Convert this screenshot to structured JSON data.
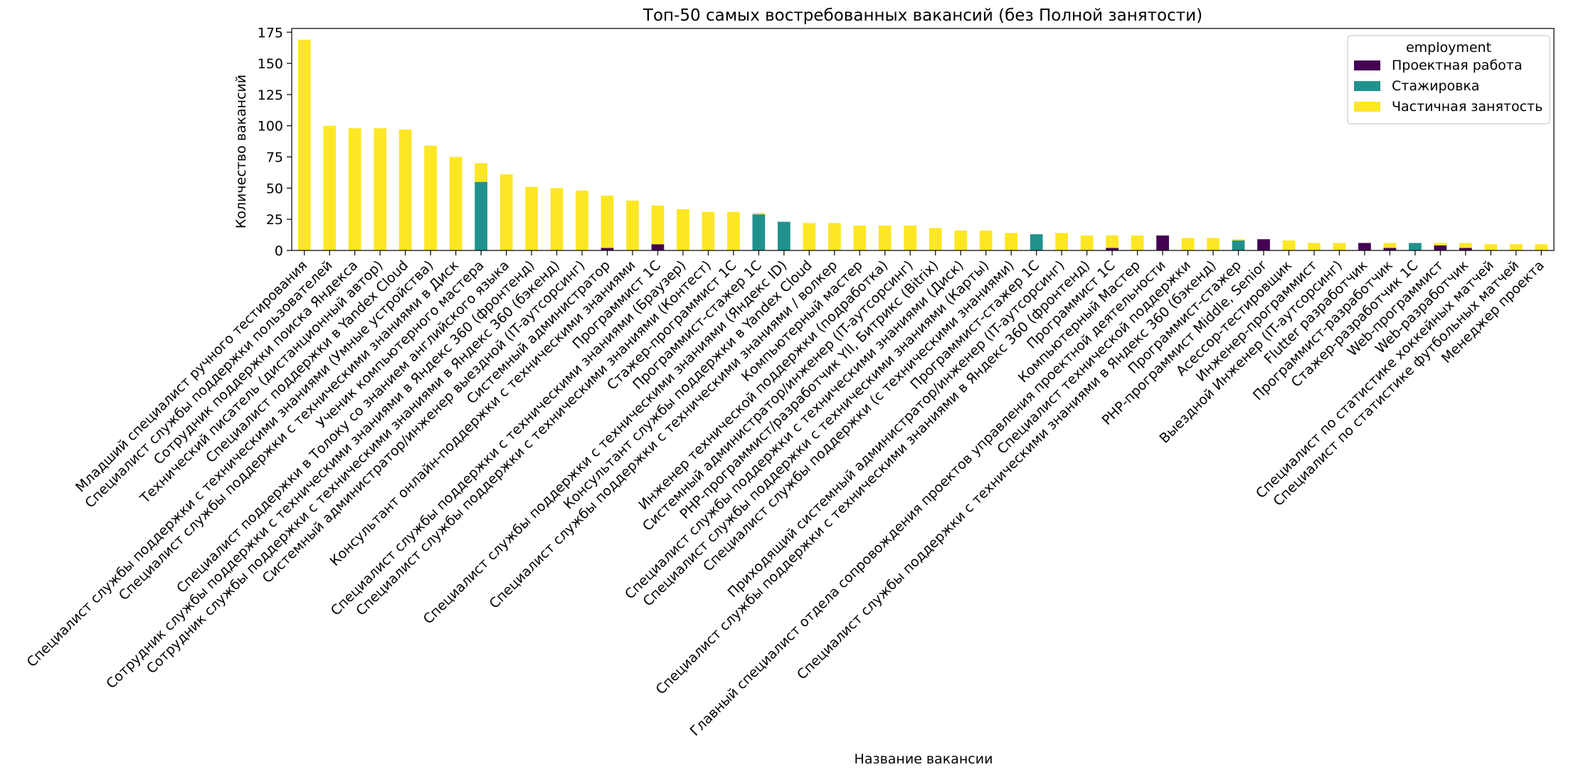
{
  "colors": {
    "Проектная работа": "#440154",
    "Стажировка": "#21918c",
    "Частичная занятость": "#fde725"
  },
  "chart_data": {
    "type": "bar",
    "stacked": true,
    "title": "Топ-50 самых востребованных вакансий (без Полной занятости)",
    "xlabel": "Название вакансии",
    "ylabel": "Количество вакансий",
    "ylim": [
      0,
      178
    ],
    "yticks": [
      0,
      25,
      50,
      75,
      100,
      125,
      150,
      175
    ],
    "grid": false,
    "legend": {
      "title": "employment",
      "placement": "top-right"
    },
    "categories": [
      "Младший специалист ручного тестирования",
      "Специалист службы поддержки пользователей",
      "Сотрудник поддержки поиска Яндекса",
      "Технический писатель (дистанционный автор)",
      "Специалист поддержки в Yandex Cloud",
      "Специалист службы поддержки с техническими знаниями (Умные устройства)",
      "Специалист службы поддержки с техническими знаниями в Диск",
      "Ученик компьютерного мастера",
      "Специалист поддержки в Толоку со знанием английского языка",
      "Сотрудник службы поддержки с техническими знаниями в Яндекс 360 (фронтенд)",
      "Сотрудник службы поддержки с техническими знаниями в Яндекс 360 (бэкенд)",
      "Системный администратор/инженер выездной (IT-аутсорсинг)",
      "Системный администратор",
      "Консультант онлайн-поддержки с техническими знаниями",
      "Программист 1С",
      "Специалист службы поддержки с техническими знаниями (Браузер)",
      "Специалист службы поддержки с техническими знаниями (Контест)",
      "Стажер-программист 1С",
      "Программист-стажер 1С",
      "Специалист службы поддержки с техническими знаниями (Яндекс ID)",
      "Консультант службы поддержки в Yandex Cloud",
      "Специалист службы поддержки с техническими знаниями / волкер",
      "Компьютерный мастер",
      "Инженер технической поддержки (подработка)",
      "Системный администратор/инженер (IT-аутсорсинг)",
      "PHP-программист/разработчик YII, Битрикс (Bitrix)",
      "Специалист службы поддержки с техническими знаниями (Диск)",
      "Специалист службы поддержки с техническими знаниями (Карты)",
      "Специалист службы поддержки (с техническими знаниями)",
      "Программист-стажер 1С",
      "Приходящий системный администратор/инженер (IT-аутсорсинг)",
      "Специалист службы поддержки с техническими знаниями в Яндекс 360 (фронтенд)",
      "Программист 1С",
      "Компьютерный Мастер",
      "Главный специалист отдела сопровождения проектов управления проектной деятельности",
      "Специалист технической поддержки",
      "Специалист службы поддержки с техническими знаниями в Яндекс 360 (бэкенд)",
      "Программист-стажер",
      "PHP-программист Middle, Senior",
      "Асессор-тестировщик",
      "Инженер-программист",
      "Выездной Инженер (IT-аутсорсинг)",
      "Flutter разработчик",
      "Программист-разработчик",
      "Стажер-разработчик 1С",
      "Web-программист",
      "Web-разработчик",
      "Специалист по статистике хоккейных матчей",
      "Специалист по статистике футбольных матчей",
      "Менеджер проекта"
    ],
    "series": [
      {
        "name": "Проектная работа",
        "values": [
          0,
          0,
          0,
          0,
          0,
          0,
          0,
          0,
          0,
          0,
          0,
          0,
          2,
          0,
          5,
          0,
          0,
          0,
          0,
          0,
          0,
          0,
          0,
          0,
          0,
          0,
          0,
          0,
          0,
          0,
          0,
          0,
          2,
          0,
          12,
          0,
          0,
          0,
          9,
          0,
          0,
          0,
          6,
          2,
          0,
          4,
          2,
          0,
          0,
          0
        ]
      },
      {
        "name": "Стажировка",
        "values": [
          0,
          0,
          0,
          0,
          0,
          0,
          0,
          55,
          0,
          0,
          0,
          0,
          0,
          0,
          0,
          0,
          0,
          0,
          29,
          23,
          0,
          0,
          0,
          0,
          0,
          0,
          0,
          0,
          0,
          13,
          0,
          0,
          0,
          0,
          0,
          0,
          0,
          8,
          0,
          0,
          0,
          0,
          0,
          0,
          6,
          0,
          0,
          0,
          0,
          0
        ]
      },
      {
        "name": "Частичная занятость",
        "values": [
          169,
          100,
          98,
          98,
          97,
          84,
          75,
          15,
          61,
          51,
          50,
          48,
          42,
          40,
          31,
          33,
          31,
          31,
          1,
          0,
          22,
          22,
          20,
          20,
          20,
          18,
          16,
          16,
          14,
          0,
          14,
          12,
          10,
          12,
          0,
          10,
          10,
          1,
          0,
          8,
          6,
          6,
          0,
          4,
          0,
          2,
          4,
          5,
          5,
          5
        ]
      }
    ]
  }
}
